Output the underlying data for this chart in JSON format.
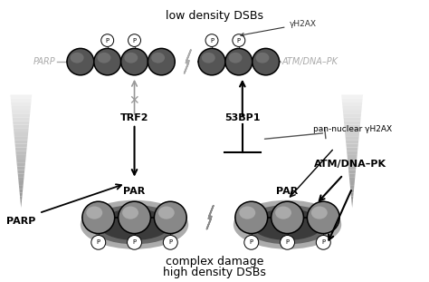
{
  "title": "low density DSBs",
  "bottom_title1": "complex damage",
  "bottom_title2": "high density DSBs",
  "bg_color": "#ffffff",
  "labels": {
    "parp_top": "PARP",
    "atm_top": "ATM/DNA–PK",
    "trf2": "TRF2",
    "53bp1": "53BP1",
    "parp_bottom": "PARP",
    "par_left": "PAR",
    "par_right": "PAR",
    "atm_bottom": "ATM/DNA–PK",
    "pan_nuclear": "pan-nuclear γH2AX",
    "gamma_h2ax": "γH2AX"
  },
  "top_nuc_color": "#555555",
  "top_nuc_highlight": "#888888",
  "bot_nuc_color": "#aaaaaa",
  "bot_nuc_highlight": "#dddddd",
  "shadow_color": "#444444",
  "tri_color_left": "#bbbbbb",
  "tri_color_right": "#888888"
}
